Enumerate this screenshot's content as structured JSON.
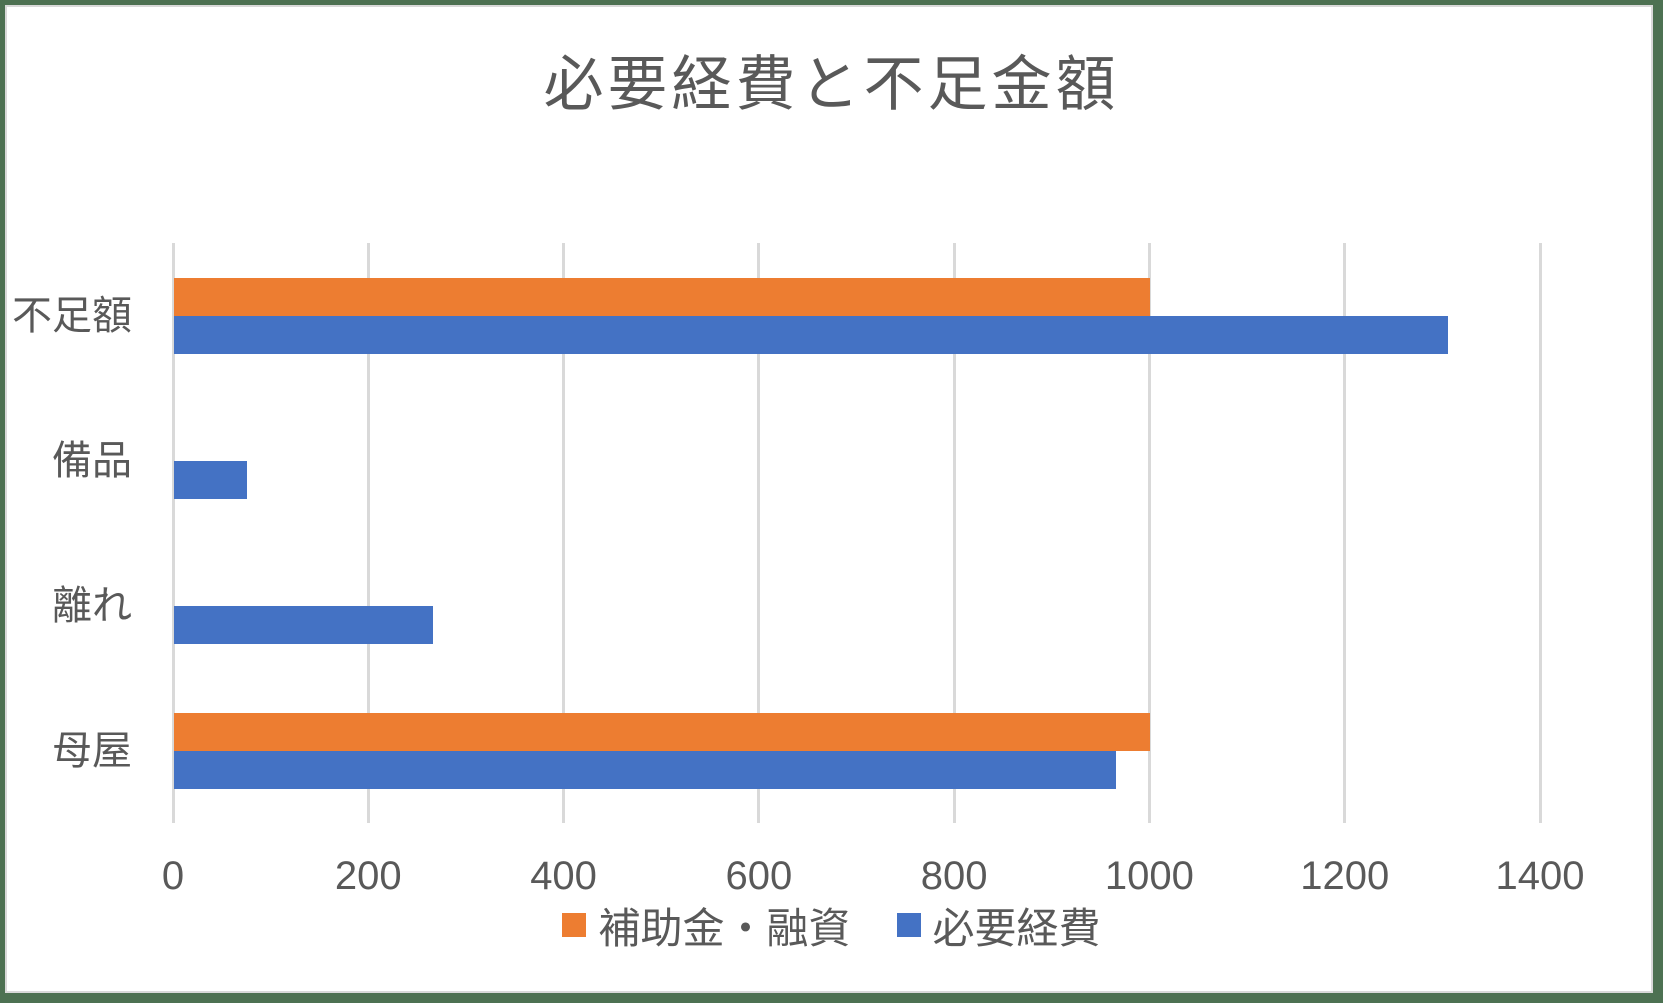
{
  "window": {
    "frame_border_color": "#4d7152",
    "inner_border_color": "#d9d9d9",
    "background_color": "#ffffff"
  },
  "chart_data": {
    "type": "bar",
    "orientation": "horizontal",
    "title": "必要経費と不足金額",
    "title_color": "#595959",
    "categories": [
      "不足額",
      "備品",
      "離れ",
      "母屋"
    ],
    "series": [
      {
        "name": "補助金・融資",
        "color": "#ED7D31",
        "values": [
          1000,
          0,
          0,
          1000
        ]
      },
      {
        "name": "必要経費",
        "color": "#4472C4",
        "values": [
          1305,
          75,
          265,
          965
        ]
      }
    ],
    "xlim": [
      0,
      1400
    ],
    "x_ticks": [
      "0",
      "200",
      "400",
      "600",
      "800",
      "1000",
      "1200",
      "1400"
    ],
    "grid": true,
    "gridline_color": "#d9d9d9",
    "axis_text_color": "#595959",
    "legend_position": "bottom",
    "xlabel": "",
    "ylabel": ""
  }
}
